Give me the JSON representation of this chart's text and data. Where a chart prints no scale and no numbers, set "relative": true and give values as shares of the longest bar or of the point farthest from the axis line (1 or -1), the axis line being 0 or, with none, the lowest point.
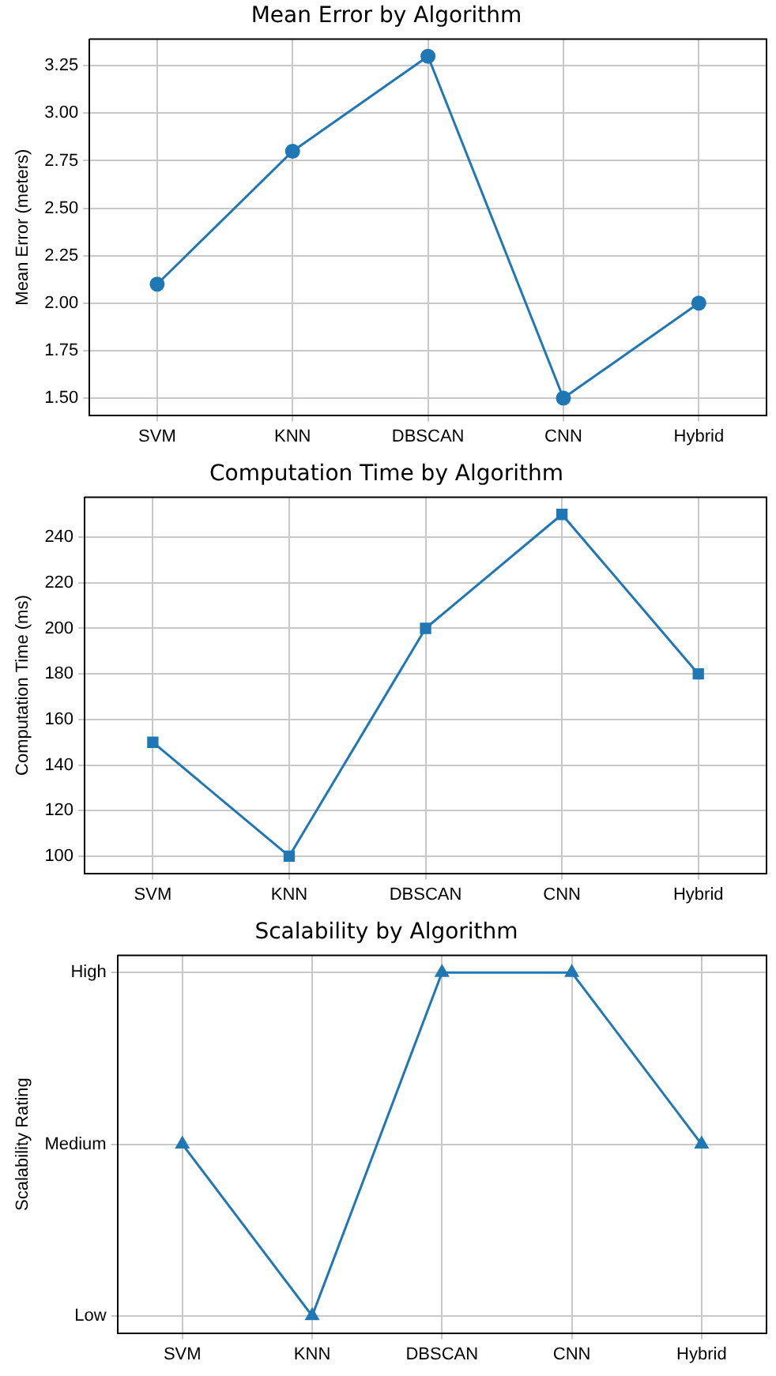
{
  "chart_data": [
    {
      "type": "line",
      "title": "Mean Error by Algorithm",
      "ylabel": "Mean Error (meters)",
      "categories": [
        "SVM",
        "KNN",
        "DBSCAN",
        "CNN",
        "Hybrid"
      ],
      "series": [
        {
          "color": "#1f77b4",
          "values": [
            2.1,
            2.8,
            3.3,
            1.5,
            2.0
          ]
        }
      ],
      "ylim": [
        1.41,
        3.39
      ],
      "yticks": [
        {
          "value": 1.5,
          "label": "1.50"
        },
        {
          "value": 1.75,
          "label": "1.75"
        },
        {
          "value": 2,
          "label": "2.00"
        },
        {
          "value": 2.25,
          "label": "2.25"
        },
        {
          "value": 2.5,
          "label": "2.50"
        },
        {
          "value": 2.75,
          "label": "2.75"
        },
        {
          "value": 3,
          "label": "3.00"
        },
        {
          "value": 3.25,
          "label": "3.25"
        }
      ],
      "grid": true,
      "marker": "circle",
      "line_style": "solid"
    },
    {
      "type": "line",
      "title": "Computation Time by Algorithm",
      "ylabel": "Computation Time (ms)",
      "categories": [
        "SVM",
        "KNN",
        "DBSCAN",
        "CNN",
        "Hybrid"
      ],
      "series": [
        {
          "color": "#1f77b4",
          "values": [
            150,
            100,
            200,
            250,
            180
          ]
        }
      ],
      "ylim": [
        92.5,
        257.5
      ],
      "yticks": [
        100,
        120,
        140,
        160,
        180,
        200,
        220,
        240
      ],
      "grid": true,
      "marker": "square",
      "line_style": "solid"
    },
    {
      "type": "line",
      "title": "Scalability by Algorithm",
      "ylabel": "Scalability Rating",
      "categories": [
        "SVM",
        "KNN",
        "DBSCAN",
        "CNN",
        "Hybrid"
      ],
      "series": [
        {
          "color": "#1f77b4",
          "values": [
            0.5,
            0,
            1,
            1,
            0.5
          ]
        }
      ],
      "relative": true,
      "y_categories": [
        "High",
        "Medium",
        "Low"
      ],
      "grid": true,
      "marker": "triangle",
      "line_style": "solid"
    }
  ]
}
